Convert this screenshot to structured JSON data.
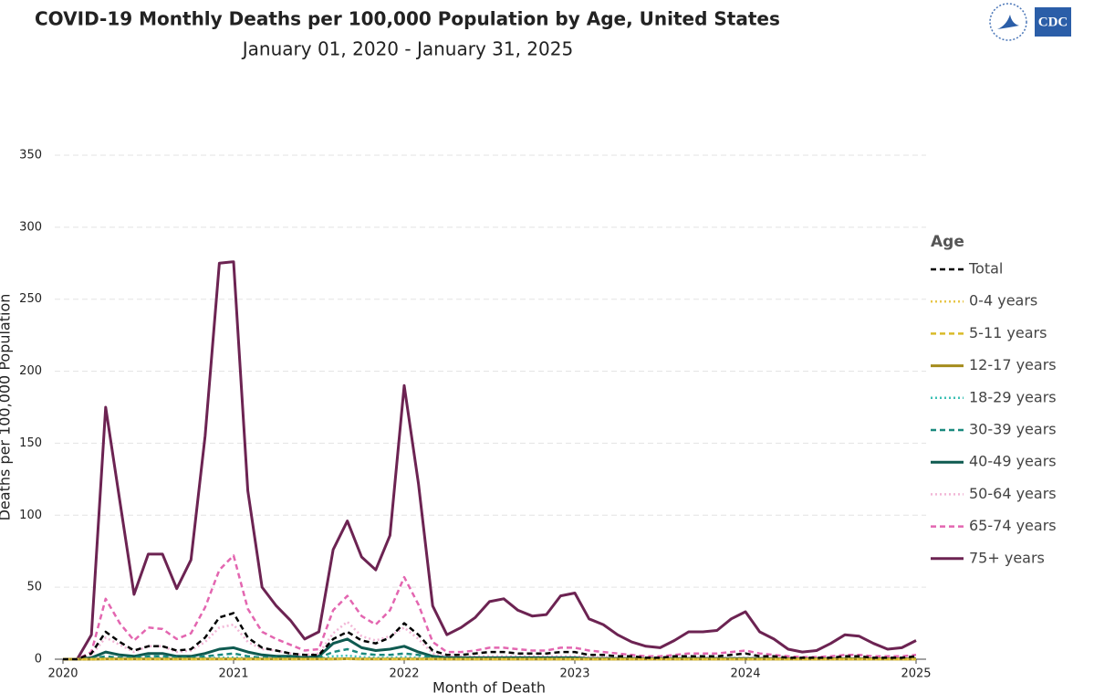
{
  "logo_text": "CDC",
  "chart_data": {
    "type": "line",
    "title": "COVID-19 Monthly Deaths per 100,000 Population by Age, United States",
    "subtitle": "January 01, 2020 - January 31, 2025",
    "y_label": "Deaths per 100,000 Population",
    "x_label": "Month of Death",
    "legend_title": "Age",
    "legend": "right",
    "grid": true,
    "ylim": [
      0,
      350
    ],
    "yticks": [
      0,
      50,
      100,
      150,
      200,
      250,
      300,
      350
    ],
    "categories": [
      "2020",
      null,
      null,
      null,
      null,
      null,
      null,
      null,
      null,
      null,
      null,
      null,
      "2021",
      null,
      null,
      null,
      null,
      null,
      null,
      null,
      null,
      null,
      null,
      null,
      "2022",
      null,
      null,
      null,
      null,
      null,
      null,
      null,
      null,
      null,
      null,
      null,
      "2023",
      null,
      null,
      null,
      null,
      null,
      null,
      null,
      null,
      null,
      null,
      null,
      "2024",
      null,
      null,
      null,
      null,
      null,
      null,
      null,
      null,
      null,
      null,
      null,
      "2025"
    ],
    "series": [
      {
        "name": "Total",
        "color": "#000000",
        "style": "dashed",
        "values": [
          0,
          0,
          4,
          19,
          12,
          6,
          9,
          9,
          6,
          7,
          15,
          29,
          32,
          15,
          8,
          6,
          4,
          3,
          3,
          14,
          19,
          13,
          11,
          15,
          25,
          17,
          6,
          3,
          3,
          4,
          5,
          5,
          4,
          4,
          4,
          5,
          5,
          3,
          3,
          2,
          2,
          1,
          1,
          2,
          2,
          2,
          2,
          3,
          4,
          2,
          2,
          1,
          1,
          1,
          1,
          2,
          2,
          1,
          1,
          1,
          2
        ]
      },
      {
        "name": "0-4 years",
        "color": "#e8c547",
        "style": "dotted",
        "values": [
          0,
          0,
          0,
          0.05,
          0.05,
          0,
          0,
          0,
          0,
          0,
          0.05,
          0.05,
          0.1,
          0.05,
          0.05,
          0,
          0,
          0,
          0,
          0.1,
          0.1,
          0.1,
          0.05,
          0.05,
          0.1,
          0.1,
          0.05,
          0.05,
          0.05,
          0.05,
          0.05,
          0.05,
          0.05,
          0.05,
          0.05,
          0.05,
          0.05,
          0.05,
          0.05,
          0.05,
          0.05,
          0.05,
          0.05,
          0.05,
          0.05,
          0.05,
          0.05,
          0.05,
          0.05,
          0.05,
          0.05,
          0.05,
          0.05,
          0.05,
          0.05,
          0.05,
          0.05,
          0.05,
          0.05,
          0.05,
          0.05
        ]
      },
      {
        "name": "5-11 years",
        "color": "#d9bb2a",
        "style": "dashed",
        "values": [
          0,
          0,
          0,
          0,
          0,
          0,
          0,
          0,
          0,
          0,
          0,
          0.05,
          0.05,
          0,
          0,
          0,
          0,
          0,
          0,
          0.05,
          0.1,
          0.05,
          0.05,
          0.05,
          0.05,
          0.05,
          0,
          0,
          0,
          0,
          0,
          0,
          0,
          0,
          0,
          0,
          0,
          0,
          0,
          0,
          0,
          0,
          0,
          0,
          0,
          0,
          0,
          0,
          0,
          0,
          0,
          0,
          0,
          0,
          0,
          0,
          0,
          0,
          0,
          0,
          0
        ]
      },
      {
        "name": "12-17 years",
        "color": "#a58c1c",
        "style": "solid",
        "values": [
          0,
          0,
          0,
          0.1,
          0.1,
          0.1,
          0.1,
          0.1,
          0.1,
          0.1,
          0.1,
          0.2,
          0.2,
          0.1,
          0.1,
          0.1,
          0.1,
          0.1,
          0.1,
          0.2,
          0.3,
          0.2,
          0.1,
          0.1,
          0.2,
          0.2,
          0.1,
          0.05,
          0.05,
          0.05,
          0.05,
          0.05,
          0.05,
          0.05,
          0.05,
          0.05,
          0.05,
          0.05,
          0.05,
          0.05,
          0.05,
          0.05,
          0.05,
          0.05,
          0.05,
          0.05,
          0.05,
          0.05,
          0.05,
          0.05,
          0.05,
          0.05,
          0.05,
          0.05,
          0.05,
          0.05,
          0.05,
          0.05,
          0.05,
          0.05,
          0.05
        ]
      },
      {
        "name": "18-29 years",
        "color": "#3cc0b4",
        "style": "dotted",
        "values": [
          0,
          0,
          0.2,
          0.5,
          0.4,
          0.4,
          0.8,
          0.8,
          0.4,
          0.4,
          0.7,
          1,
          1.2,
          0.6,
          0.4,
          0.3,
          0.3,
          0.2,
          0.4,
          2,
          2.5,
          1.5,
          1,
          1,
          1.5,
          1,
          0.3,
          0.2,
          0.2,
          0.2,
          0.2,
          0.2,
          0.2,
          0.2,
          0.2,
          0.2,
          0.2,
          0.2,
          0.2,
          0.2,
          0.1,
          0.1,
          0.1,
          0.1,
          0.1,
          0.1,
          0.1,
          0.1,
          0.1,
          0.1,
          0.1,
          0.1,
          0.1,
          0.1,
          0.1,
          0.1,
          0.1,
          0.1,
          0.1,
          0.1,
          0.1
        ]
      },
      {
        "name": "30-39 years",
        "color": "#1a8a7e",
        "style": "dashed",
        "values": [
          0,
          0,
          0.5,
          2,
          1,
          1,
          2,
          2,
          1,
          1,
          2,
          3,
          4,
          2,
          1,
          1,
          1,
          0.5,
          1,
          5,
          7,
          4,
          3,
          3,
          4,
          3,
          1,
          0.5,
          0.5,
          0.5,
          0.5,
          0.5,
          0.5,
          0.5,
          0.5,
          0.5,
          0.5,
          0.3,
          0.3,
          0.3,
          0.3,
          0.3,
          0.3,
          0.3,
          0.3,
          0.3,
          0.3,
          0.3,
          0.3,
          0.3,
          0.2,
          0.2,
          0.2,
          0.2,
          0.2,
          0.2,
          0.2,
          0.2,
          0.2,
          0.2,
          0.2
        ]
      },
      {
        "name": "40-49 years",
        "color": "#0e5a50",
        "style": "solid",
        "values": [
          0,
          0,
          1,
          5,
          3,
          2,
          4,
          4,
          2,
          2,
          4,
          7,
          8,
          5,
          3,
          2,
          2,
          1,
          2,
          11,
          14,
          8,
          6,
          7,
          9,
          5,
          2,
          1,
          1,
          1,
          1,
          1,
          1,
          1,
          1,
          1,
          1,
          0.5,
          0.5,
          0.5,
          0.5,
          0.5,
          0.5,
          0.5,
          0.5,
          0.5,
          0.5,
          0.5,
          0.5,
          0.5,
          0.3,
          0.3,
          0.3,
          0.3,
          0.3,
          0.3,
          0.3,
          0.3,
          0.3,
          0.3,
          0.3
        ]
      },
      {
        "name": "50-64 years",
        "color": "#f2b6d6",
        "style": "dotted",
        "values": [
          0,
          0,
          3,
          15,
          10,
          5,
          9,
          9,
          5,
          6,
          12,
          22,
          24,
          12,
          7,
          6,
          4,
          3,
          4,
          18,
          26,
          16,
          13,
          16,
          22,
          14,
          4,
          2,
          2,
          2,
          2,
          2,
          2,
          2,
          2,
          2,
          2,
          1.5,
          1.5,
          1,
          1,
          1,
          1,
          1,
          1,
          1,
          1,
          1,
          1,
          1,
          1,
          0.5,
          0.5,
          0.5,
          0.5,
          0.5,
          0.5,
          0.5,
          0.5,
          0.5,
          0.5
        ]
      },
      {
        "name": "65-74 years",
        "color": "#e366b0",
        "style": "dashed",
        "values": [
          0,
          0,
          5,
          42,
          25,
          13,
          22,
          21,
          14,
          18,
          36,
          62,
          72,
          35,
          19,
          14,
          10,
          6,
          7,
          34,
          44,
          30,
          24,
          34,
          57,
          38,
          12,
          5,
          5,
          6,
          8,
          8,
          7,
          6,
          6,
          8,
          8,
          6,
          5,
          4,
          3,
          2,
          2,
          3,
          4,
          4,
          4,
          5,
          6,
          4,
          3,
          2,
          1.5,
          1.5,
          2,
          3,
          3,
          2,
          2,
          2,
          3
        ]
      },
      {
        "name": "75+ years",
        "color": "#6c2352",
        "style": "solid",
        "values": [
          0,
          0,
          17,
          175,
          110,
          45,
          73,
          73,
          49,
          69,
          155,
          275,
          276,
          117,
          50,
          37,
          27,
          14,
          19,
          76,
          96,
          71,
          62,
          86,
          190,
          122,
          37,
          17,
          22,
          29,
          40,
          42,
          34,
          30,
          31,
          44,
          46,
          28,
          24,
          17,
          12,
          9,
          8,
          13,
          19,
          19,
          20,
          28,
          33,
          19,
          14,
          7,
          5,
          6,
          11,
          17,
          16,
          11,
          7,
          8,
          13
        ]
      }
    ]
  }
}
